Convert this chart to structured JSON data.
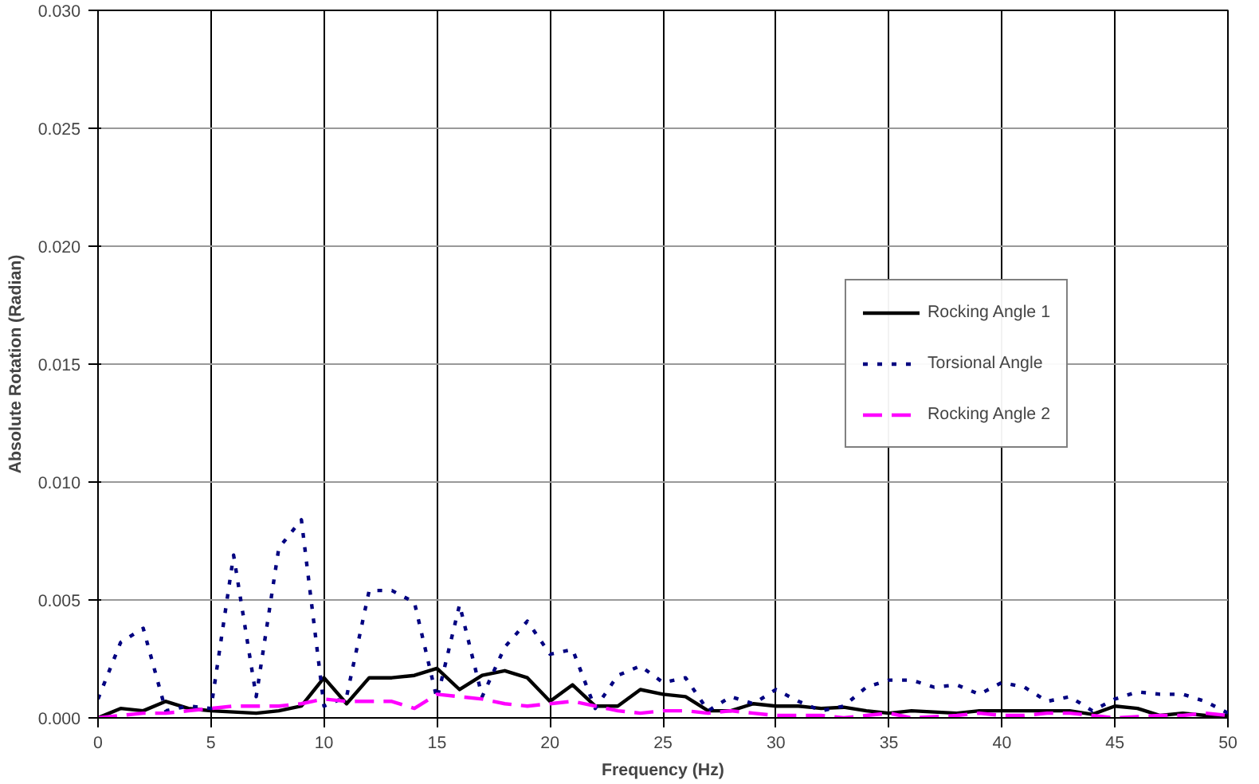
{
  "chart_data": {
    "type": "line",
    "xlabel": "Frequency (Hz)",
    "ylabel": "Absolute Rotation (Radian)",
    "x": [
      0,
      1,
      2,
      3,
      4,
      5,
      6,
      7,
      8,
      9,
      10,
      11,
      12,
      13,
      14,
      15,
      16,
      17,
      18,
      19,
      20,
      21,
      22,
      23,
      24,
      25,
      26,
      27,
      28,
      29,
      30,
      31,
      32,
      33,
      34,
      35,
      36,
      37,
      38,
      39,
      40,
      41,
      42,
      43,
      44,
      45,
      46,
      47,
      48,
      49,
      50
    ],
    "series": [
      {
        "name": "Rocking Angle 1",
        "color": "#000000",
        "line_style": "solid",
        "values": [
          0.0,
          0.0004,
          0.0003,
          0.0007,
          0.0004,
          0.0003,
          0.00025,
          0.0002,
          0.0003,
          0.0005,
          0.0017,
          0.0006,
          0.0017,
          0.0017,
          0.0018,
          0.0021,
          0.0012,
          0.0018,
          0.002,
          0.0017,
          0.0007,
          0.0014,
          0.0005,
          0.0005,
          0.0012,
          0.001,
          0.0009,
          0.0003,
          0.0003,
          0.0006,
          0.0005,
          0.0005,
          0.0004,
          0.00045,
          0.0003,
          0.0002,
          0.0003,
          0.00025,
          0.0002,
          0.0003,
          0.0003,
          0.0003,
          0.0003,
          0.0003,
          0.00015,
          0.0005,
          0.0004,
          0.0001,
          0.0002,
          0.0001,
          0.0001
        ]
      },
      {
        "name": "Torsional Angle",
        "color": "#000080",
        "line_style": "dotted",
        "values": [
          0.0008,
          0.0032,
          0.0038,
          0.0003,
          0.0005,
          0.0004,
          0.0069,
          0.0009,
          0.0072,
          0.0084,
          0.0005,
          0.0009,
          0.0054,
          0.0054,
          0.0049,
          0.0008,
          0.0048,
          0.0009,
          0.003,
          0.0041,
          0.0027,
          0.0029,
          0.0004,
          0.0018,
          0.0022,
          0.0015,
          0.0017,
          0.0003,
          0.0009,
          0.0006,
          0.0012,
          0.0007,
          0.0003,
          0.0005,
          0.0013,
          0.0016,
          0.0016,
          0.0013,
          0.0014,
          0.001,
          0.0015,
          0.0013,
          0.0007,
          0.0009,
          0.0003,
          0.0008,
          0.0011,
          0.001,
          0.001,
          0.0007,
          0.0002
        ]
      },
      {
        "name": "Rocking Angle 2",
        "color": "#ff00ff",
        "line_style": "dashed",
        "values": [
          0.0,
          0.0001,
          0.0002,
          0.0002,
          0.0003,
          0.0004,
          0.0005,
          0.0005,
          0.0005,
          0.0006,
          0.0008,
          0.0007,
          0.0007,
          0.0007,
          0.0004,
          0.001,
          0.0009,
          0.0008,
          0.0006,
          0.0005,
          0.0006,
          0.0007,
          0.0005,
          0.0003,
          0.0002,
          0.0003,
          0.0003,
          0.0002,
          0.0003,
          0.0002,
          0.0001,
          0.0001,
          0.0001,
          0.0,
          0.0001,
          0.0002,
          0.0,
          5e-05,
          0.0001,
          0.0002,
          0.0001,
          0.0001,
          0.0002,
          0.0002,
          0.0001,
          0.0,
          5e-05,
          0.0001,
          0.0001,
          0.0002,
          0.0001
        ]
      }
    ],
    "xlim": [
      0,
      50
    ],
    "xticks": [
      0,
      5,
      10,
      15,
      20,
      25,
      30,
      35,
      40,
      45,
      50
    ],
    "ylim": [
      0,
      0.03
    ],
    "yticks": [
      {
        "value": 0,
        "label": "0.000"
      },
      {
        "value": 0.005,
        "label": "0.005"
      },
      {
        "value": 0.01,
        "label": "0.010"
      },
      {
        "value": 0.015,
        "label": "0.015"
      },
      {
        "value": 0.02,
        "label": "0.020"
      },
      {
        "value": 0.025,
        "label": "0.025"
      },
      {
        "value": 0.03,
        "label": "0.030"
      }
    ],
    "grid": true,
    "legend": "right",
    "marker": "none"
  }
}
